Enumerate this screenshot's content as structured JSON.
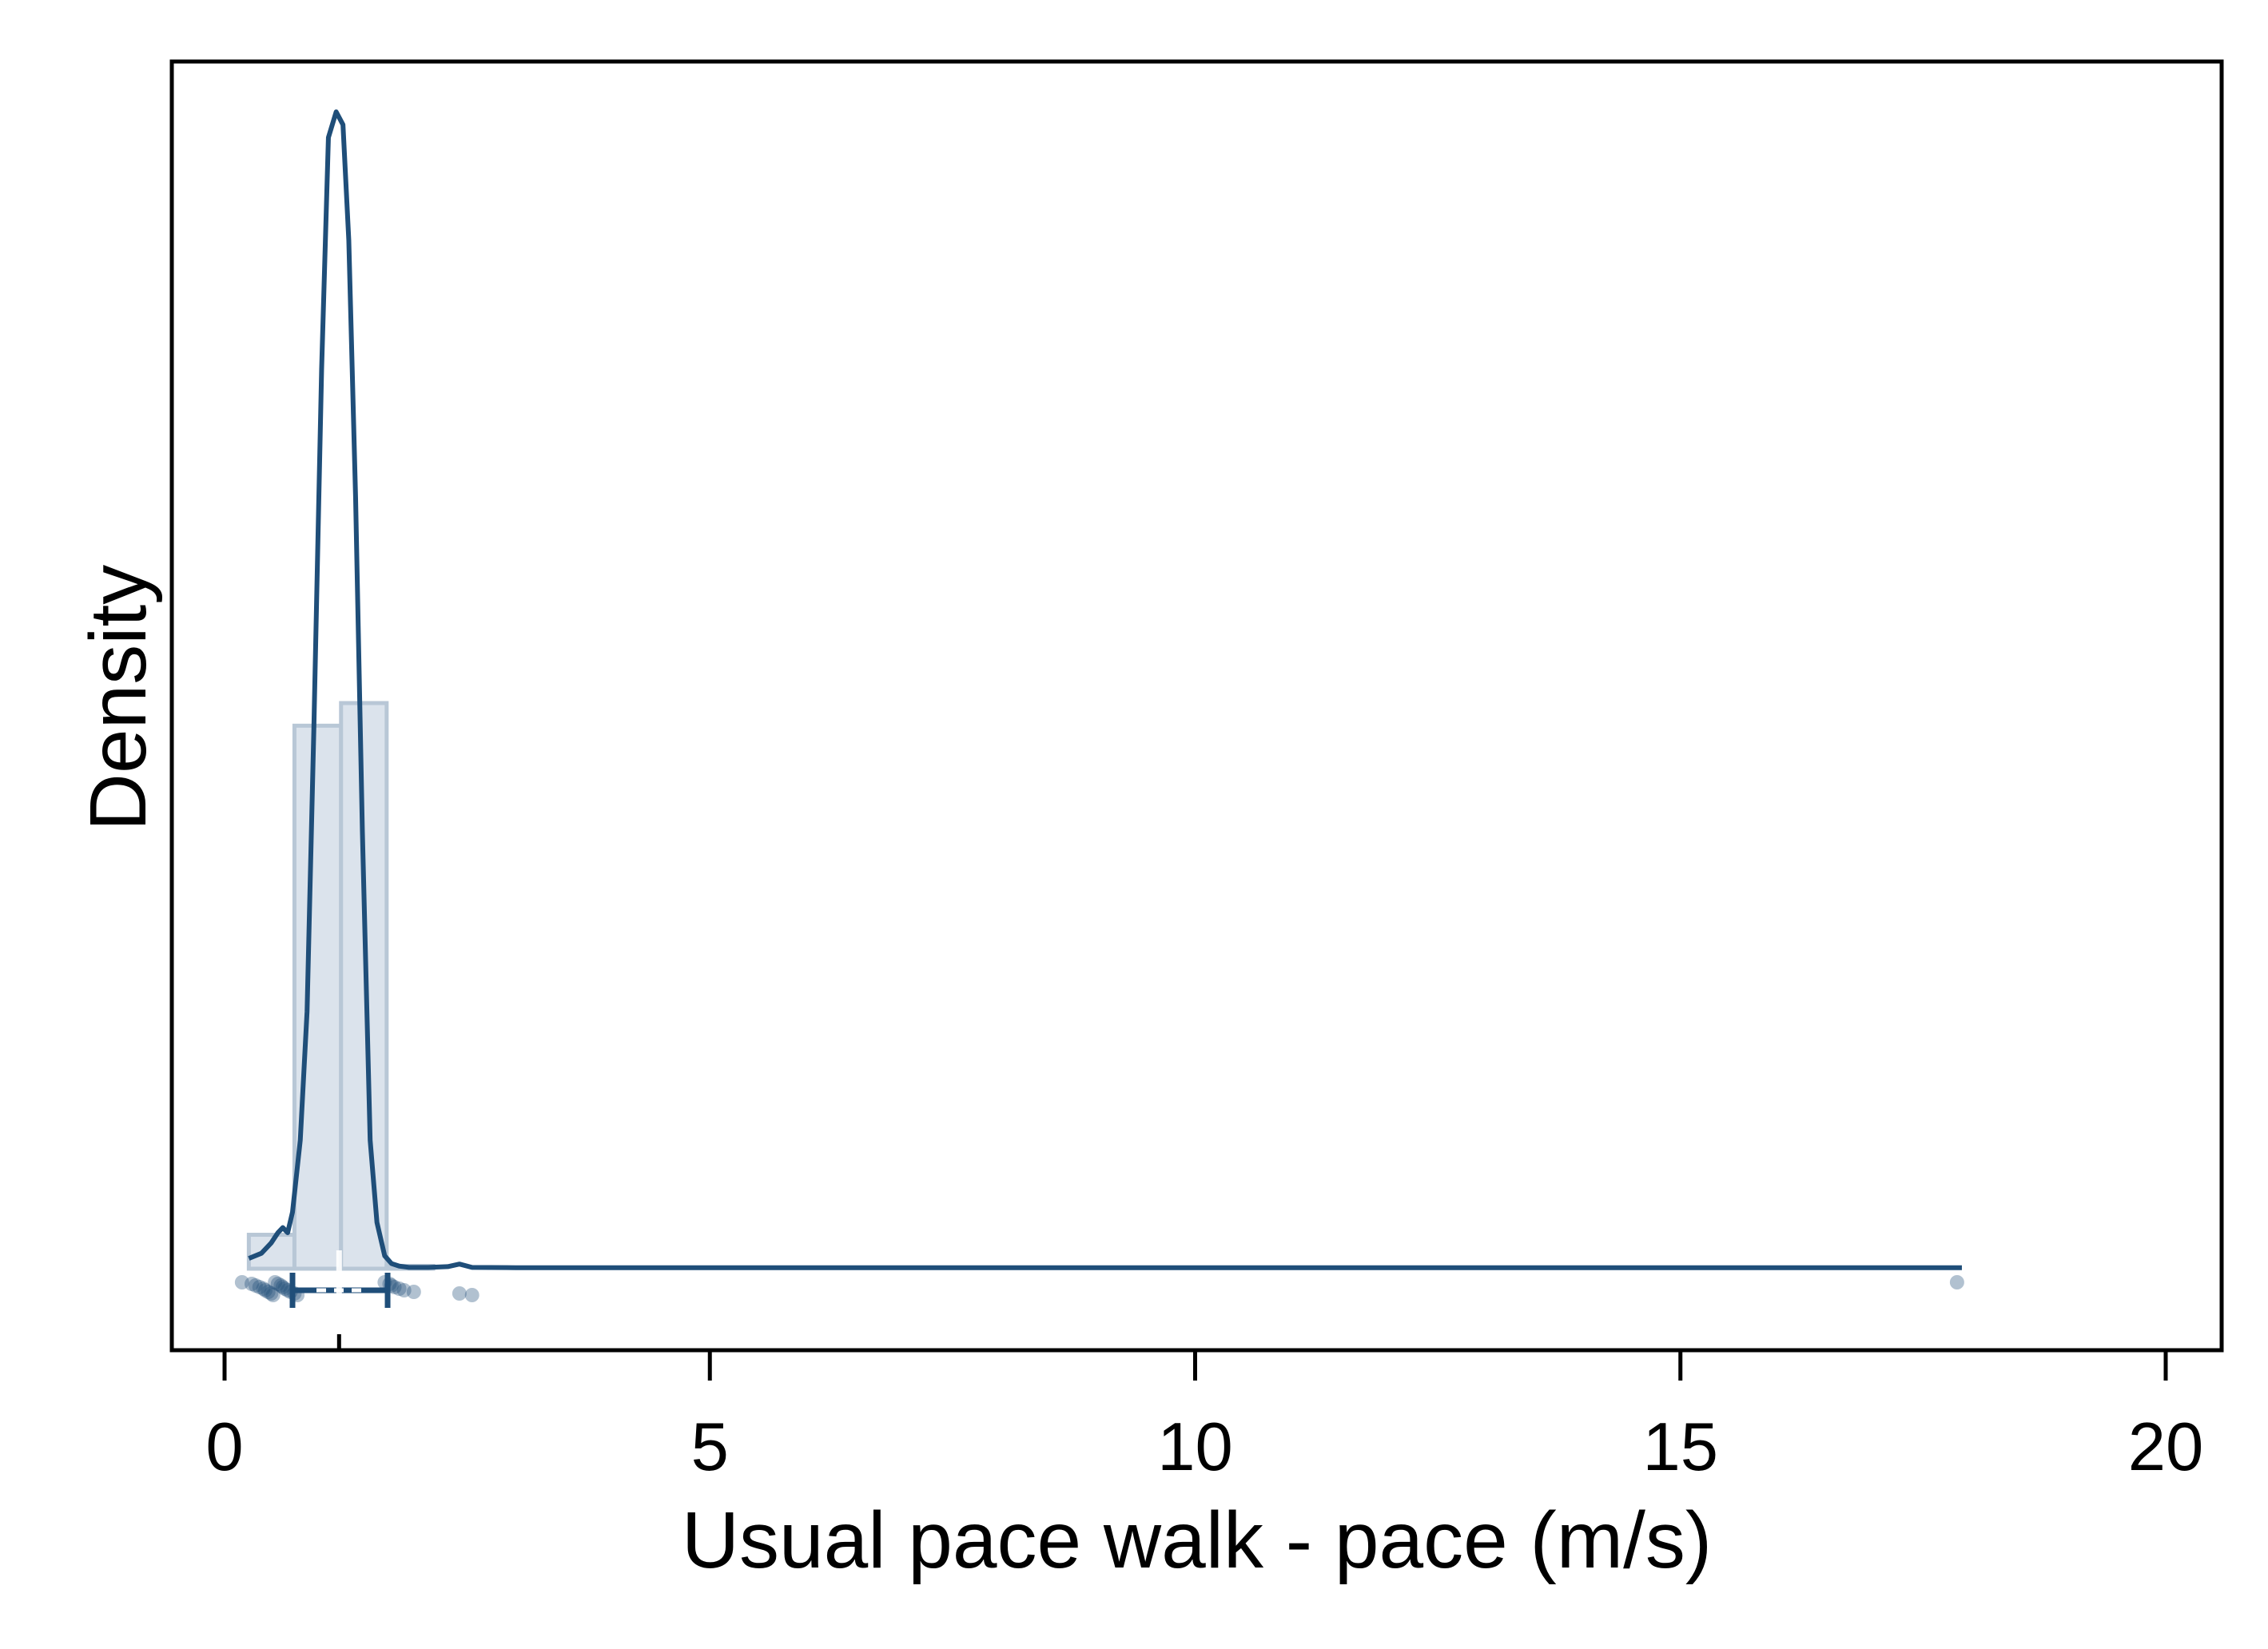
{
  "chart_data": {
    "type": "histogram",
    "xlabel": "Usual pace walk - pace (m/s)",
    "ylabel": "Density",
    "xlim": [
      -0.5,
      20.5
    ],
    "x_ticks": [
      0,
      5,
      10,
      15,
      20
    ],
    "x_tick_labels": [
      "0",
      "5",
      "10",
      "15",
      "20"
    ],
    "y_ticks_shown": false,
    "grid": false,
    "legend": "none",
    "colors": {
      "line": "#1f4e79",
      "bar_fill": "#dbe3ec",
      "bar_stroke": "#b8c7d6",
      "points": "#1f4e79",
      "axis": "#000000"
    },
    "histogram": {
      "bins": [
        {
          "x0": 0.25,
          "x1": 0.72,
          "density": 0.06
        },
        {
          "x0": 0.72,
          "x1": 1.2,
          "density": 0.96
        },
        {
          "x0": 1.2,
          "x1": 1.67,
          "density": 1.0
        },
        {
          "x0": 1.67,
          "x1": 2.15,
          "density": 0.005
        }
      ]
    },
    "density_curve": {
      "x": [
        0.25,
        0.38,
        0.48,
        0.55,
        0.6,
        0.65,
        0.7,
        0.78,
        0.85,
        0.92,
        1.0,
        1.07,
        1.15,
        1.22,
        1.28,
        1.35,
        1.42,
        1.5,
        1.57,
        1.65,
        1.72,
        1.8,
        1.9,
        2.1,
        2.3,
        2.42,
        2.55,
        3.0,
        10.0,
        17.9
      ],
      "y": [
        0.04,
        0.06,
        0.1,
        0.14,
        0.16,
        0.14,
        0.22,
        0.5,
        1.0,
        2.1,
        3.5,
        4.4,
        4.5,
        4.45,
        4.0,
        3.0,
        1.7,
        0.5,
        0.18,
        0.05,
        0.02,
        0.01,
        0.005,
        0.005,
        0.008,
        0.018,
        0.005,
        0.004,
        0.004,
        0.004
      ]
    },
    "box": {
      "q1": 0.7,
      "median": 1.18,
      "q3": 1.68
    },
    "points": [
      0.18,
      0.28,
      0.32,
      0.36,
      0.4,
      0.42,
      0.45,
      0.48,
      0.5,
      0.52,
      0.55,
      0.58,
      0.6,
      0.62,
      0.65,
      0.68,
      0.72,
      0.75,
      1.65,
      1.7,
      1.72,
      1.75,
      1.8,
      1.85,
      1.95,
      2.42,
      2.55,
      17.85
    ]
  }
}
